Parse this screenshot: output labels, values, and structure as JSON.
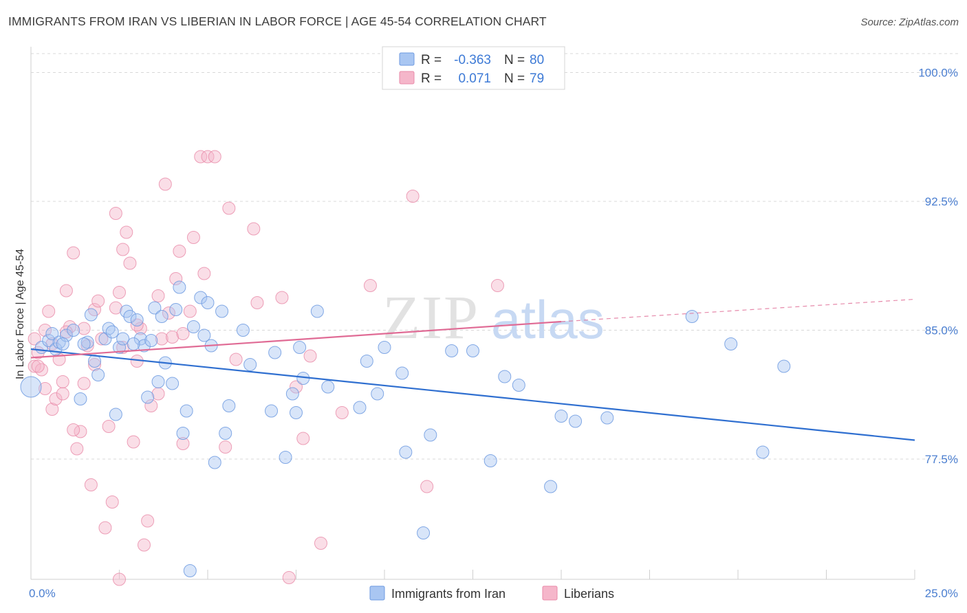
{
  "title": "IMMIGRANTS FROM IRAN VS LIBERIAN IN LABOR FORCE | AGE 45-54 CORRELATION CHART",
  "source": "Source: ZipAtlas.com",
  "watermark": {
    "zip": "ZIP",
    "atlas": "atlas"
  },
  "colors": {
    "blue_fill": "#a9c6f2",
    "blue_stroke": "#6d9ae0",
    "blue_line": "#2f6fd0",
    "pink_fill": "#f5b6ca",
    "pink_stroke": "#e98aa8",
    "pink_line": "#e06b95",
    "grid": "#d8d8d8",
    "tick_text": "#4a7ed0"
  },
  "legend": {
    "rows": [
      {
        "r_label": "R =",
        "r_value": "-0.363",
        "n_label": "N =",
        "n_value": "80"
      },
      {
        "r_label": "R =",
        "r_value": "0.071",
        "n_label": "N =",
        "n_value": "79"
      }
    ]
  },
  "bottom_legend": [
    "Immigrants from Iran",
    "Liberians"
  ],
  "chart_data": {
    "type": "scatter",
    "xlabel": "",
    "ylabel": "In Labor Force | Age 45-54",
    "xlim": [
      0,
      25
    ],
    "ylim": [
      70.5,
      101.5
    ],
    "x_tick_labels": [
      {
        "value": 0,
        "label": "0.0%"
      },
      {
        "value": 25,
        "label": "25.0%"
      }
    ],
    "y_tick_labels": [
      {
        "value": 77.5,
        "label": "77.5%"
      },
      {
        "value": 85.0,
        "label": "85.0%"
      },
      {
        "value": 92.5,
        "label": "92.5%"
      },
      {
        "value": 100.0,
        "label": "100.0%"
      }
    ],
    "grid": true,
    "legend_position": "top-center",
    "series": [
      {
        "name": "Immigrants from Iran",
        "color": "#a9c6f2",
        "trend": {
          "x": [
            0,
            25
          ],
          "y": [
            83.9,
            78.6
          ]
        },
        "points": [
          [
            0.0,
            81.7
          ],
          [
            0.3,
            84.0
          ],
          [
            0.5,
            84.4
          ],
          [
            0.6,
            84.8
          ],
          [
            0.7,
            83.9
          ],
          [
            0.8,
            84.3
          ],
          [
            1.0,
            84.7
          ],
          [
            1.2,
            85.0
          ],
          [
            1.4,
            81.0
          ],
          [
            1.6,
            84.3
          ],
          [
            1.7,
            85.9
          ],
          [
            1.8,
            83.2
          ],
          [
            1.9,
            82.4
          ],
          [
            2.1,
            84.5
          ],
          [
            2.2,
            85.1
          ],
          [
            2.3,
            84.9
          ],
          [
            2.4,
            80.1
          ],
          [
            2.5,
            84.0
          ],
          [
            2.6,
            84.5
          ],
          [
            2.7,
            86.1
          ],
          [
            2.8,
            85.8
          ],
          [
            3.0,
            85.6
          ],
          [
            3.1,
            84.5
          ],
          [
            3.2,
            84.1
          ],
          [
            3.3,
            81.1
          ],
          [
            3.5,
            86.3
          ],
          [
            3.6,
            82.0
          ],
          [
            3.7,
            85.8
          ],
          [
            3.8,
            83.1
          ],
          [
            4.0,
            81.9
          ],
          [
            4.1,
            86.2
          ],
          [
            4.2,
            87.5
          ],
          [
            4.3,
            79.0
          ],
          [
            4.4,
            80.3
          ],
          [
            4.5,
            71.0
          ],
          [
            4.8,
            86.9
          ],
          [
            4.9,
            84.7
          ],
          [
            5.0,
            86.6
          ],
          [
            5.1,
            84.1
          ],
          [
            5.2,
            77.3
          ],
          [
            5.4,
            86.1
          ],
          [
            5.5,
            79.0
          ],
          [
            5.6,
            80.6
          ],
          [
            6.2,
            83.0
          ],
          [
            6.8,
            80.3
          ],
          [
            6.9,
            83.7
          ],
          [
            7.2,
            77.6
          ],
          [
            7.4,
            81.3
          ],
          [
            7.5,
            80.2
          ],
          [
            7.6,
            84.0
          ],
          [
            7.7,
            82.2
          ],
          [
            8.1,
            86.1
          ],
          [
            8.4,
            81.7
          ],
          [
            9.3,
            80.5
          ],
          [
            9.5,
            83.2
          ],
          [
            9.8,
            81.3
          ],
          [
            10.0,
            84.0
          ],
          [
            10.5,
            82.5
          ],
          [
            10.6,
            77.9
          ],
          [
            11.1,
            73.2
          ],
          [
            11.3,
            78.9
          ],
          [
            11.9,
            83.8
          ],
          [
            12.5,
            83.8
          ],
          [
            13.0,
            77.4
          ],
          [
            13.4,
            82.3
          ],
          [
            13.8,
            81.8
          ],
          [
            14.7,
            75.9
          ],
          [
            15.0,
            80.0
          ],
          [
            15.4,
            79.7
          ],
          [
            16.3,
            79.9
          ],
          [
            18.7,
            85.8
          ],
          [
            19.8,
            84.2
          ],
          [
            20.7,
            77.9
          ],
          [
            21.3,
            82.9
          ],
          [
            0.9,
            84.2
          ],
          [
            1.5,
            84.2
          ],
          [
            3.4,
            84.4
          ],
          [
            2.9,
            84.2
          ],
          [
            4.6,
            85.2
          ],
          [
            6.0,
            85.0
          ]
        ]
      },
      {
        "name": "Liberians",
        "color": "#f5b6ca",
        "trend": {
          "x": [
            0,
            15
          ],
          "y": [
            83.4,
            85.5
          ]
        },
        "trend_dashed": {
          "x": [
            15,
            25
          ],
          "y": [
            85.5,
            86.8
          ]
        },
        "points": [
          [
            0.1,
            82.9
          ],
          [
            0.2,
            83.7
          ],
          [
            0.3,
            82.7
          ],
          [
            0.4,
            81.6
          ],
          [
            0.4,
            85.0
          ],
          [
            0.5,
            86.1
          ],
          [
            0.6,
            80.4
          ],
          [
            0.7,
            81.0
          ],
          [
            0.8,
            83.3
          ],
          [
            0.9,
            81.3
          ],
          [
            1.0,
            87.3
          ],
          [
            1.1,
            85.2
          ],
          [
            1.2,
            89.5
          ],
          [
            1.3,
            78.1
          ],
          [
            1.4,
            79.1
          ],
          [
            1.5,
            81.9
          ],
          [
            1.6,
            84.1
          ],
          [
            1.7,
            76.0
          ],
          [
            1.8,
            86.2
          ],
          [
            1.9,
            86.7
          ],
          [
            2.0,
            84.5
          ],
          [
            2.1,
            73.5
          ],
          [
            2.2,
            79.4
          ],
          [
            2.3,
            75.0
          ],
          [
            2.4,
            91.8
          ],
          [
            2.5,
            87.2
          ],
          [
            2.6,
            89.7
          ],
          [
            2.7,
            90.7
          ],
          [
            2.8,
            88.9
          ],
          [
            2.9,
            78.5
          ],
          [
            3.0,
            83.2
          ],
          [
            3.1,
            85.1
          ],
          [
            3.2,
            72.5
          ],
          [
            3.3,
            73.9
          ],
          [
            3.4,
            80.6
          ],
          [
            3.6,
            81.3
          ],
          [
            3.7,
            84.5
          ],
          [
            3.8,
            93.5
          ],
          [
            3.9,
            86.0
          ],
          [
            4.0,
            84.6
          ],
          [
            4.1,
            88.0
          ],
          [
            4.2,
            89.6
          ],
          [
            4.3,
            78.4
          ],
          [
            4.5,
            86.1
          ],
          [
            4.6,
            90.4
          ],
          [
            4.8,
            95.1
          ],
          [
            5.0,
            95.1
          ],
          [
            5.2,
            95.1
          ],
          [
            5.5,
            78.2
          ],
          [
            5.6,
            92.1
          ],
          [
            5.8,
            83.3
          ],
          [
            6.3,
            90.9
          ],
          [
            6.4,
            86.6
          ],
          [
            7.1,
            86.9
          ],
          [
            7.5,
            81.7
          ],
          [
            7.7,
            78.7
          ],
          [
            7.9,
            83.5
          ],
          [
            8.2,
            72.6
          ],
          [
            8.8,
            80.2
          ],
          [
            9.6,
            87.6
          ],
          [
            10.8,
            92.8
          ],
          [
            11.2,
            75.9
          ],
          [
            13.2,
            87.6
          ],
          [
            1.0,
            84.9
          ],
          [
            0.2,
            82.9
          ],
          [
            1.5,
            85.1
          ],
          [
            2.6,
            84.0
          ],
          [
            0.6,
            84.2
          ],
          [
            1.8,
            83.0
          ],
          [
            3.0,
            85.3
          ],
          [
            4.3,
            84.8
          ],
          [
            0.1,
            84.5
          ],
          [
            1.2,
            79.2
          ],
          [
            2.4,
            86.3
          ],
          [
            3.6,
            87.0
          ],
          [
            0.9,
            82.0
          ],
          [
            7.3,
            70.6
          ],
          [
            2.5,
            70.5
          ],
          [
            4.9,
            88.3
          ]
        ]
      }
    ]
  }
}
